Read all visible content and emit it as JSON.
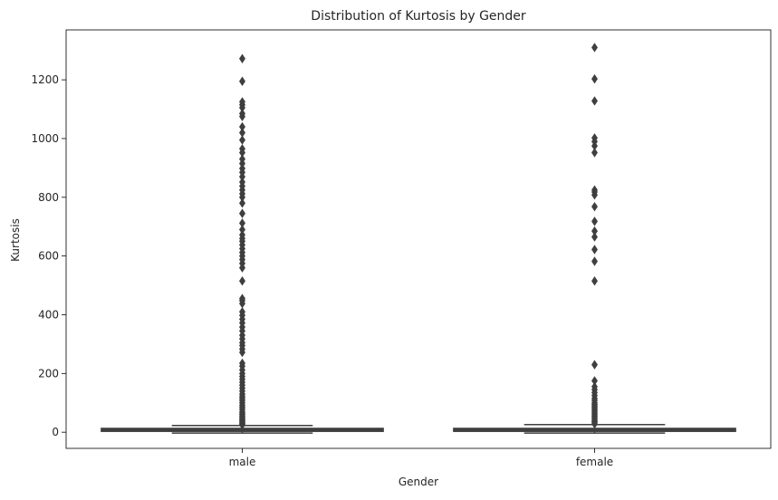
{
  "chart_data": {
    "type": "box",
    "title": "Distribution of Kurtosis by Gender",
    "xlabel": "Gender",
    "ylabel": "Kurtosis",
    "categories": [
      "male",
      "female"
    ],
    "ylim": [
      -55,
      1370
    ],
    "yticks": [
      0,
      200,
      400,
      600,
      800,
      1000,
      1200
    ],
    "grid": false,
    "legend": "none",
    "boxes": [
      {
        "category": "male",
        "whisker_low": -3,
        "q1": 3,
        "median": 7,
        "q3": 13,
        "whisker_high": 23,
        "outliers": [
          25,
          28,
          31,
          35,
          38,
          42,
          46,
          50,
          55,
          60,
          65,
          70,
          78,
          85,
          92,
          100,
          108,
          115,
          122,
          130,
          140,
          150,
          160,
          170,
          180,
          190,
          200,
          212,
          225,
          235,
          272,
          283,
          295,
          305,
          318,
          330,
          345,
          358,
          372,
          385,
          398,
          410,
          438,
          448,
          455,
          515,
          560,
          575,
          588,
          600,
          612,
          625,
          638,
          650,
          660,
          672,
          690,
          712,
          745,
          780,
          800,
          812,
          825,
          838,
          852,
          870,
          885,
          898,
          915,
          930,
          952,
          965,
          995,
          1020,
          1040,
          1075,
          1085,
          1105,
          1115,
          1125,
          1195,
          1272
        ]
      },
      {
        "category": "female",
        "whisker_low": -3,
        "q1": 3,
        "median": 8,
        "q3": 13,
        "whisker_high": 26,
        "outliers": [
          28,
          32,
          36,
          40,
          45,
          50,
          55,
          60,
          65,
          70,
          75,
          80,
          85,
          90,
          95,
          100,
          108,
          115,
          125,
          135,
          145,
          155,
          175,
          230,
          515,
          582,
          622,
          665,
          685,
          718,
          768,
          808,
          818,
          825,
          952,
          975,
          990,
          1002,
          1128,
          1203,
          1310
        ]
      }
    ],
    "colors": {
      "box_face": "#3f3f3f",
      "line": "#3f3f3f",
      "axis": "#000000",
      "text": "#262626"
    }
  }
}
